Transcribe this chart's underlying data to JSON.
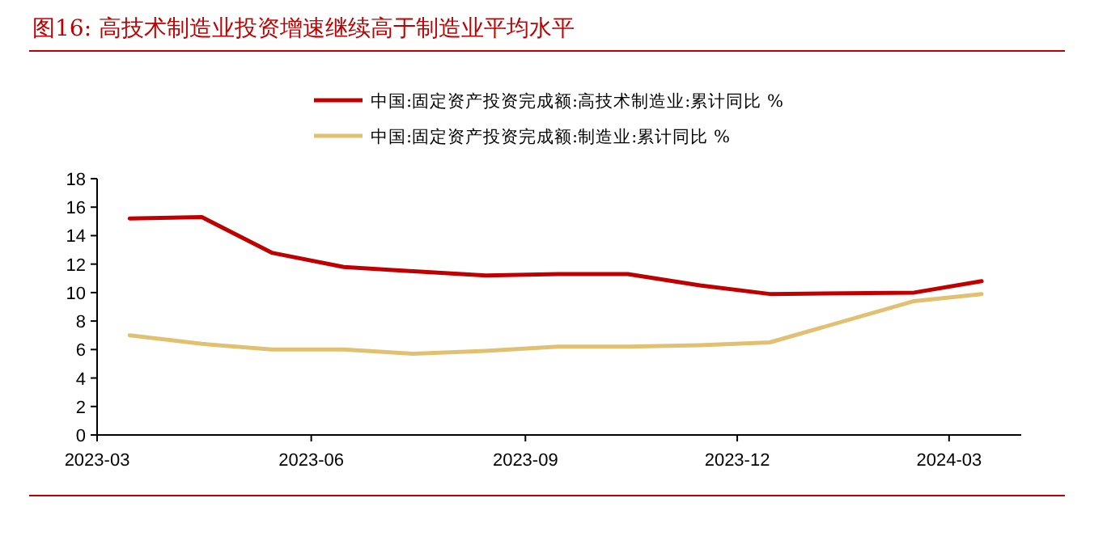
{
  "chart_data": {
    "type": "line",
    "title": "图16:  高技术制造业投资增速继续高于制造业平均水平",
    "x": [
      "2023-03-15",
      "2023-04-15",
      "2023-05-15",
      "2023-06-15",
      "2023-07-15",
      "2023-08-15",
      "2023-09-15",
      "2023-10-15",
      "2023-11-15",
      "2023-12-15",
      "2024-02-15",
      "2024-03-15"
    ],
    "series": [
      {
        "name": "中国:固定资产投资完成额:高技术制造业:累计同比 %",
        "color": "#c00000",
        "values": [
          15.2,
          15.3,
          12.8,
          11.8,
          11.5,
          11.2,
          11.3,
          11.3,
          10.5,
          9.9,
          10.0,
          10.8
        ]
      },
      {
        "name": "中国:固定资产投资完成额:制造业:累计同比 %",
        "color": "#e2c071",
        "values": [
          7.0,
          6.4,
          6.0,
          6.0,
          5.7,
          5.9,
          6.2,
          6.2,
          6.3,
          6.5,
          9.4,
          9.9
        ]
      }
    ],
    "xlim": [
      "2023-03",
      "2024-04"
    ],
    "xticks": [
      "2023-03",
      "2023-06",
      "2023-09",
      "2023-12",
      "2024-03"
    ],
    "ylim": [
      0,
      18
    ],
    "yticks": [
      0,
      2,
      4,
      6,
      8,
      10,
      12,
      14,
      16,
      18
    ],
    "legend": "top",
    "grid": false,
    "marker": "none",
    "line_style": "solid"
  }
}
